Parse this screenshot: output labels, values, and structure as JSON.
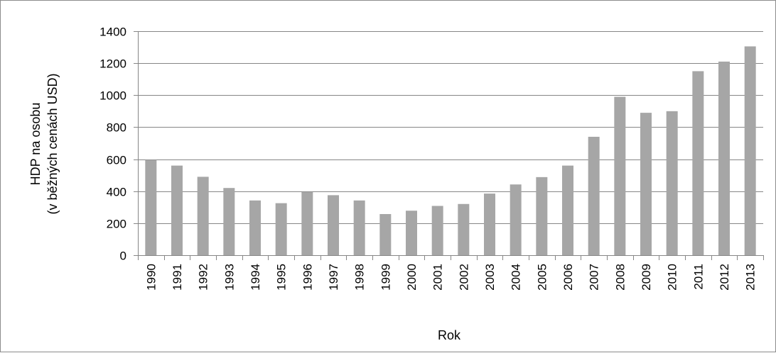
{
  "chart_data": {
    "type": "bar",
    "title": "",
    "xlabel": "Rok",
    "ylabel_lines": [
      "HDP na osobu",
      "(v běžných cenách USD)"
    ],
    "categories": [
      "1990",
      "1991",
      "1992",
      "1993",
      "1994",
      "1995",
      "1996",
      "1997",
      "1998",
      "1999",
      "2000",
      "2001",
      "2002",
      "2003",
      "2004",
      "2005",
      "2006",
      "2007",
      "2008",
      "2009",
      "2010",
      "2011",
      "2012",
      "2013"
    ],
    "values": [
      595,
      560,
      490,
      420,
      342,
      325,
      395,
      375,
      342,
      257,
      278,
      308,
      320,
      385,
      442,
      488,
      560,
      740,
      990,
      890,
      900,
      1150,
      1210,
      1305
    ],
    "ylim": [
      0,
      1400
    ],
    "yticks": [
      0,
      200,
      400,
      600,
      800,
      1000,
      1200,
      1400
    ],
    "ytick_labels": [
      "0",
      "200",
      "400",
      "600",
      "800",
      "1000",
      "1200",
      "1400"
    ],
    "grid": true,
    "legend": "none",
    "colors": {
      "bar": "#a6a6a6",
      "grid": "#868686",
      "axis": "#868686",
      "border": "#8c8c8c"
    }
  }
}
